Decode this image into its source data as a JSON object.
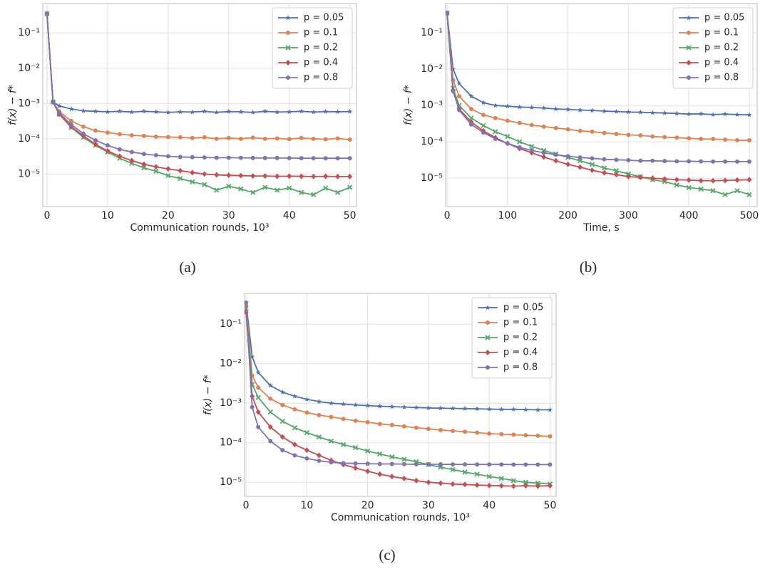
{
  "chart_data": [
    {
      "type": "line",
      "caption": "(a)",
      "xlabel": "Communication rounds, 10³",
      "ylabel": "f(x) − f*",
      "yscale": "log",
      "grid": true,
      "legend": "upper right",
      "xlim": [
        -0.7,
        51.1
      ],
      "xticks": [
        0,
        10,
        20,
        30,
        40,
        50
      ],
      "ylim": [
        1.2e-06,
        0.68
      ],
      "yticks": [
        {
          "value": 0.1,
          "label": "10⁻¹"
        },
        {
          "value": 0.01,
          "label": "10⁻²"
        },
        {
          "value": 0.001,
          "label": "10⁻³"
        },
        {
          "value": 0.0001,
          "label": "10⁻⁴"
        },
        {
          "value": 1e-05,
          "label": "10⁻⁵"
        }
      ],
      "x": [
        0,
        1,
        2,
        4,
        6,
        8,
        10,
        12,
        14,
        16,
        18,
        20,
        22,
        24,
        26,
        28,
        30,
        32,
        34,
        36,
        38,
        40,
        42,
        44,
        46,
        48,
        50
      ],
      "series": [
        {
          "name": "p = 0.05",
          "color": "#4c72b0",
          "marker": "star",
          "values": [
            0.35,
            0.0011,
            0.00085,
            0.0007,
            0.00062,
            0.0006,
            0.00058,
            0.0006,
            0.00057,
            0.0006,
            0.00058,
            0.00056,
            0.00058,
            0.00057,
            0.0006,
            0.00056,
            0.00059,
            0.00058,
            0.00056,
            0.0006,
            0.00057,
            0.00058,
            0.0006,
            0.00057,
            0.00059,
            0.00058,
            0.00059
          ]
        },
        {
          "name": "p = 0.1",
          "color": "#dd8452",
          "marker": "circle",
          "values": [
            0.35,
            0.0011,
            0.0006,
            0.00032,
            0.00022,
            0.00017,
            0.00015,
            0.000135,
            0.000125,
            0.00012,
            0.000115,
            0.000112,
            0.00011,
            0.000105,
            0.00011,
            0.0001,
            0.000105,
            0.0001,
            0.000108,
            0.0001,
            0.000102,
            9.8e-05,
            0.000105,
            0.0001,
            9.7e-05,
            0.000102,
            9.5e-05
          ]
        },
        {
          "name": "p = 0.2",
          "color": "#55a868",
          "marker": "x",
          "values": [
            0.35,
            0.0011,
            0.0005,
            0.00021,
            0.00011,
            6.5e-05,
            4.2e-05,
            2.8e-05,
            2e-05,
            1.5e-05,
            1.2e-05,
            9e-06,
            7.5e-06,
            6e-06,
            5e-06,
            3.5e-06,
            4.5e-06,
            3.8e-06,
            3e-06,
            4.2e-06,
            3.5e-06,
            4e-06,
            3e-06,
            2.6e-06,
            4e-06,
            3e-06,
            4.2e-06
          ]
        },
        {
          "name": "p = 0.4",
          "color": "#c44e52",
          "marker": "diamond",
          "values": [
            0.35,
            0.0011,
            0.0005,
            0.00022,
            0.00012,
            7e-05,
            4.5e-05,
            3.2e-05,
            2.4e-05,
            1.9e-05,
            1.6e-05,
            1.4e-05,
            1.25e-05,
            1.1e-05,
            1e-05,
            9.5e-06,
            9.2e-06,
            9e-06,
            8.8e-06,
            8.8e-06,
            8.6e-06,
            8.7e-06,
            8.6e-06,
            8.5e-06,
            8.6e-06,
            8.5e-06,
            8.5e-06
          ]
        },
        {
          "name": "p = 0.8",
          "color": "#8172b3",
          "marker": "circle",
          "values": [
            0.35,
            0.0011,
            0.00055,
            0.00025,
            0.00014,
            9e-05,
            6.5e-05,
            5e-05,
            4.2e-05,
            3.7e-05,
            3.4e-05,
            3.2e-05,
            3.05e-05,
            3e-05,
            2.95e-05,
            2.9e-05,
            2.9e-05,
            2.88e-05,
            2.85e-05,
            2.85e-05,
            2.85e-05,
            2.83e-05,
            2.82e-05,
            2.82e-05,
            2.8e-05,
            2.8e-05,
            2.8e-05
          ]
        }
      ]
    },
    {
      "type": "line",
      "caption": "(b)",
      "xlabel": "Time, s",
      "ylabel": "f(x) − f*",
      "yscale": "log",
      "grid": true,
      "legend": "upper right",
      "xlim": [
        -2.4,
        513
      ],
      "xticks": [
        0,
        100,
        200,
        300,
        400,
        500
      ],
      "ylim": [
        1.65e-06,
        0.64
      ],
      "yticks": [
        {
          "value": 0.1,
          "label": "10⁻¹"
        },
        {
          "value": 0.01,
          "label": "10⁻²"
        },
        {
          "value": 0.001,
          "label": "10⁻³"
        },
        {
          "value": 0.0001,
          "label": "10⁻⁴"
        },
        {
          "value": 1e-05,
          "label": "10⁻⁵"
        }
      ],
      "x": [
        0,
        10,
        20,
        40,
        60,
        80,
        100,
        120,
        140,
        160,
        180,
        200,
        220,
        240,
        260,
        280,
        300,
        320,
        340,
        360,
        380,
        400,
        420,
        440,
        460,
        480,
        500
      ],
      "series": [
        {
          "name": "p = 0.05",
          "color": "#4c72b0",
          "marker": "star",
          "values": [
            0.35,
            0.01,
            0.004,
            0.0018,
            0.0012,
            0.001,
            0.00095,
            0.0009,
            0.00088,
            0.00085,
            0.0008,
            0.00078,
            0.00075,
            0.00073,
            0.0007,
            0.00068,
            0.00066,
            0.00065,
            0.00063,
            0.00062,
            0.0006,
            0.00058,
            0.00059,
            0.00056,
            0.00058,
            0.00056,
            0.00055
          ]
        },
        {
          "name": "p = 0.1",
          "color": "#dd8452",
          "marker": "circle",
          "values": [
            0.35,
            0.005,
            0.0018,
            0.0008,
            0.00055,
            0.00045,
            0.00038,
            0.00033,
            0.00029,
            0.00026,
            0.00024,
            0.00022,
            0.0002,
            0.00019,
            0.000175,
            0.000165,
            0.000155,
            0.00015,
            0.00014,
            0.000135,
            0.00013,
            0.000125,
            0.00012,
            0.00012,
            0.000115,
            0.00011,
            0.00011
          ]
        },
        {
          "name": "p = 0.2",
          "color": "#55a868",
          "marker": "x",
          "values": [
            0.35,
            0.003,
            0.001,
            0.00045,
            0.00028,
            0.00019,
            0.00014,
            0.0001,
            7.5e-05,
            5.8e-05,
            4.6e-05,
            3.7e-05,
            3e-05,
            2.4e-05,
            1.9e-05,
            1.6e-05,
            1.3e-05,
            1.1e-05,
            9e-06,
            8e-06,
            6.5e-06,
            5.5e-06,
            5e-06,
            4.5e-06,
            3.5e-06,
            4.5e-06,
            3.5e-06
          ]
        },
        {
          "name": "p = 0.4",
          "color": "#c44e52",
          "marker": "diamond",
          "values": [
            0.35,
            0.0025,
            0.0008,
            0.00035,
            0.0002,
            0.00013,
            9e-05,
            6.5e-05,
            5e-05,
            3.8e-05,
            3e-05,
            2.4e-05,
            2e-05,
            1.65e-05,
            1.4e-05,
            1.25e-05,
            1.1e-05,
            1.05e-05,
            1e-05,
            9.5e-06,
            9e-06,
            8.8e-06,
            8.5e-06,
            8.5e-06,
            8.6e-06,
            8.8e-06,
            9e-06
          ]
        },
        {
          "name": "p = 0.8",
          "color": "#8172b3",
          "marker": "circle",
          "values": [
            0.35,
            0.0025,
            0.00075,
            0.0003,
            0.00018,
            0.00012,
            9e-05,
            7e-05,
            5.8e-05,
            5e-05,
            4.4e-05,
            4e-05,
            3.7e-05,
            3.5e-05,
            3.3e-05,
            3.2e-05,
            3.1e-05,
            3e-05,
            3e-05,
            2.95e-05,
            2.9e-05,
            2.9e-05,
            2.88e-05,
            2.85e-05,
            2.85e-05,
            2.85e-05,
            2.85e-05
          ]
        }
      ]
    },
    {
      "type": "line",
      "caption": "(c)",
      "xlabel": "Communication rounds, 10³",
      "ylabel": "f(x) − f*",
      "yscale": "log",
      "grid": true,
      "legend": "upper right",
      "xlim": [
        -0.25,
        51
      ],
      "xticks": [
        0,
        10,
        20,
        30,
        40,
        50
      ],
      "ylim": [
        4.4e-06,
        0.6
      ],
      "yticks": [
        {
          "value": 0.1,
          "label": "10⁻¹"
        },
        {
          "value": 0.01,
          "label": "10⁻²"
        },
        {
          "value": 0.001,
          "label": "10⁻³"
        },
        {
          "value": 0.0001,
          "label": "10⁻⁴"
        },
        {
          "value": 1e-05,
          "label": "10⁻⁵"
        }
      ],
      "x": [
        0,
        1,
        2,
        4,
        6,
        8,
        10,
        12,
        14,
        16,
        18,
        20,
        22,
        24,
        26,
        28,
        30,
        32,
        34,
        36,
        38,
        40,
        42,
        44,
        46,
        48,
        50
      ],
      "series": [
        {
          "name": "p = 0.05",
          "color": "#4c72b0",
          "marker": "star",
          "values": [
            0.35,
            0.015,
            0.006,
            0.0028,
            0.0019,
            0.0015,
            0.00125,
            0.0011,
            0.001,
            0.00095,
            0.0009,
            0.00087,
            0.00084,
            0.00082,
            0.0008,
            0.00078,
            0.00076,
            0.00075,
            0.00074,
            0.00073,
            0.00072,
            0.00071,
            0.0007,
            0.0007,
            0.00069,
            0.00068,
            0.00068
          ]
        },
        {
          "name": "p = 0.1",
          "color": "#dd8452",
          "marker": "circle",
          "values": [
            0.3,
            0.005,
            0.0025,
            0.0013,
            0.0009,
            0.0007,
            0.00058,
            0.0005,
            0.00045,
            0.0004,
            0.00036,
            0.00033,
            0.0003,
            0.00028,
            0.00026,
            0.00024,
            0.000225,
            0.00021,
            0.0002,
            0.00019,
            0.00018,
            0.00017,
            0.000165,
            0.00016,
            0.000155,
            0.00015,
            0.000145
          ]
        },
        {
          "name": "p = 0.2",
          "color": "#55a868",
          "marker": "x",
          "values": [
            0.25,
            0.003,
            0.0014,
            0.0006,
            0.00035,
            0.00024,
            0.00018,
            0.00014,
            0.00011,
            9e-05,
            7.5e-05,
            6.2e-05,
            5.2e-05,
            4.4e-05,
            3.8e-05,
            3.3e-05,
            2.8e-05,
            2.4e-05,
            2.1e-05,
            1.8e-05,
            1.6e-05,
            1.4e-05,
            1.25e-05,
            1.1e-05,
            1e-05,
            9.5e-06,
            9e-06
          ]
        },
        {
          "name": "p = 0.4",
          "color": "#c44e52",
          "marker": "diamond",
          "values": [
            0.2,
            0.0015,
            0.0006,
            0.00025,
            0.00014,
            9e-05,
            6.5e-05,
            4.8e-05,
            3.6e-05,
            2.8e-05,
            2.3e-05,
            1.9e-05,
            1.6e-05,
            1.4e-05,
            1.25e-05,
            1.1e-05,
            1e-05,
            9.5e-06,
            9e-06,
            8.8e-06,
            8.5e-06,
            8.3e-06,
            8.2e-06,
            8e-06,
            8.2e-06,
            8e-06,
            8.2e-06
          ]
        },
        {
          "name": "p = 0.8",
          "color": "#8172b3",
          "marker": "circle",
          "values": [
            0.35,
            0.0008,
            0.00025,
            0.00011,
            6.5e-05,
            4.8e-05,
            4e-05,
            3.5e-05,
            3.2e-05,
            3.05e-05,
            3e-05,
            2.95e-05,
            2.9e-05,
            2.9e-05,
            2.88e-05,
            2.85e-05,
            2.85e-05,
            2.85e-05,
            2.83e-05,
            2.83e-05,
            2.82e-05,
            2.82e-05,
            2.82e-05,
            2.8e-05,
            2.8e-05,
            2.8e-05,
            2.8e-05
          ]
        }
      ]
    }
  ]
}
